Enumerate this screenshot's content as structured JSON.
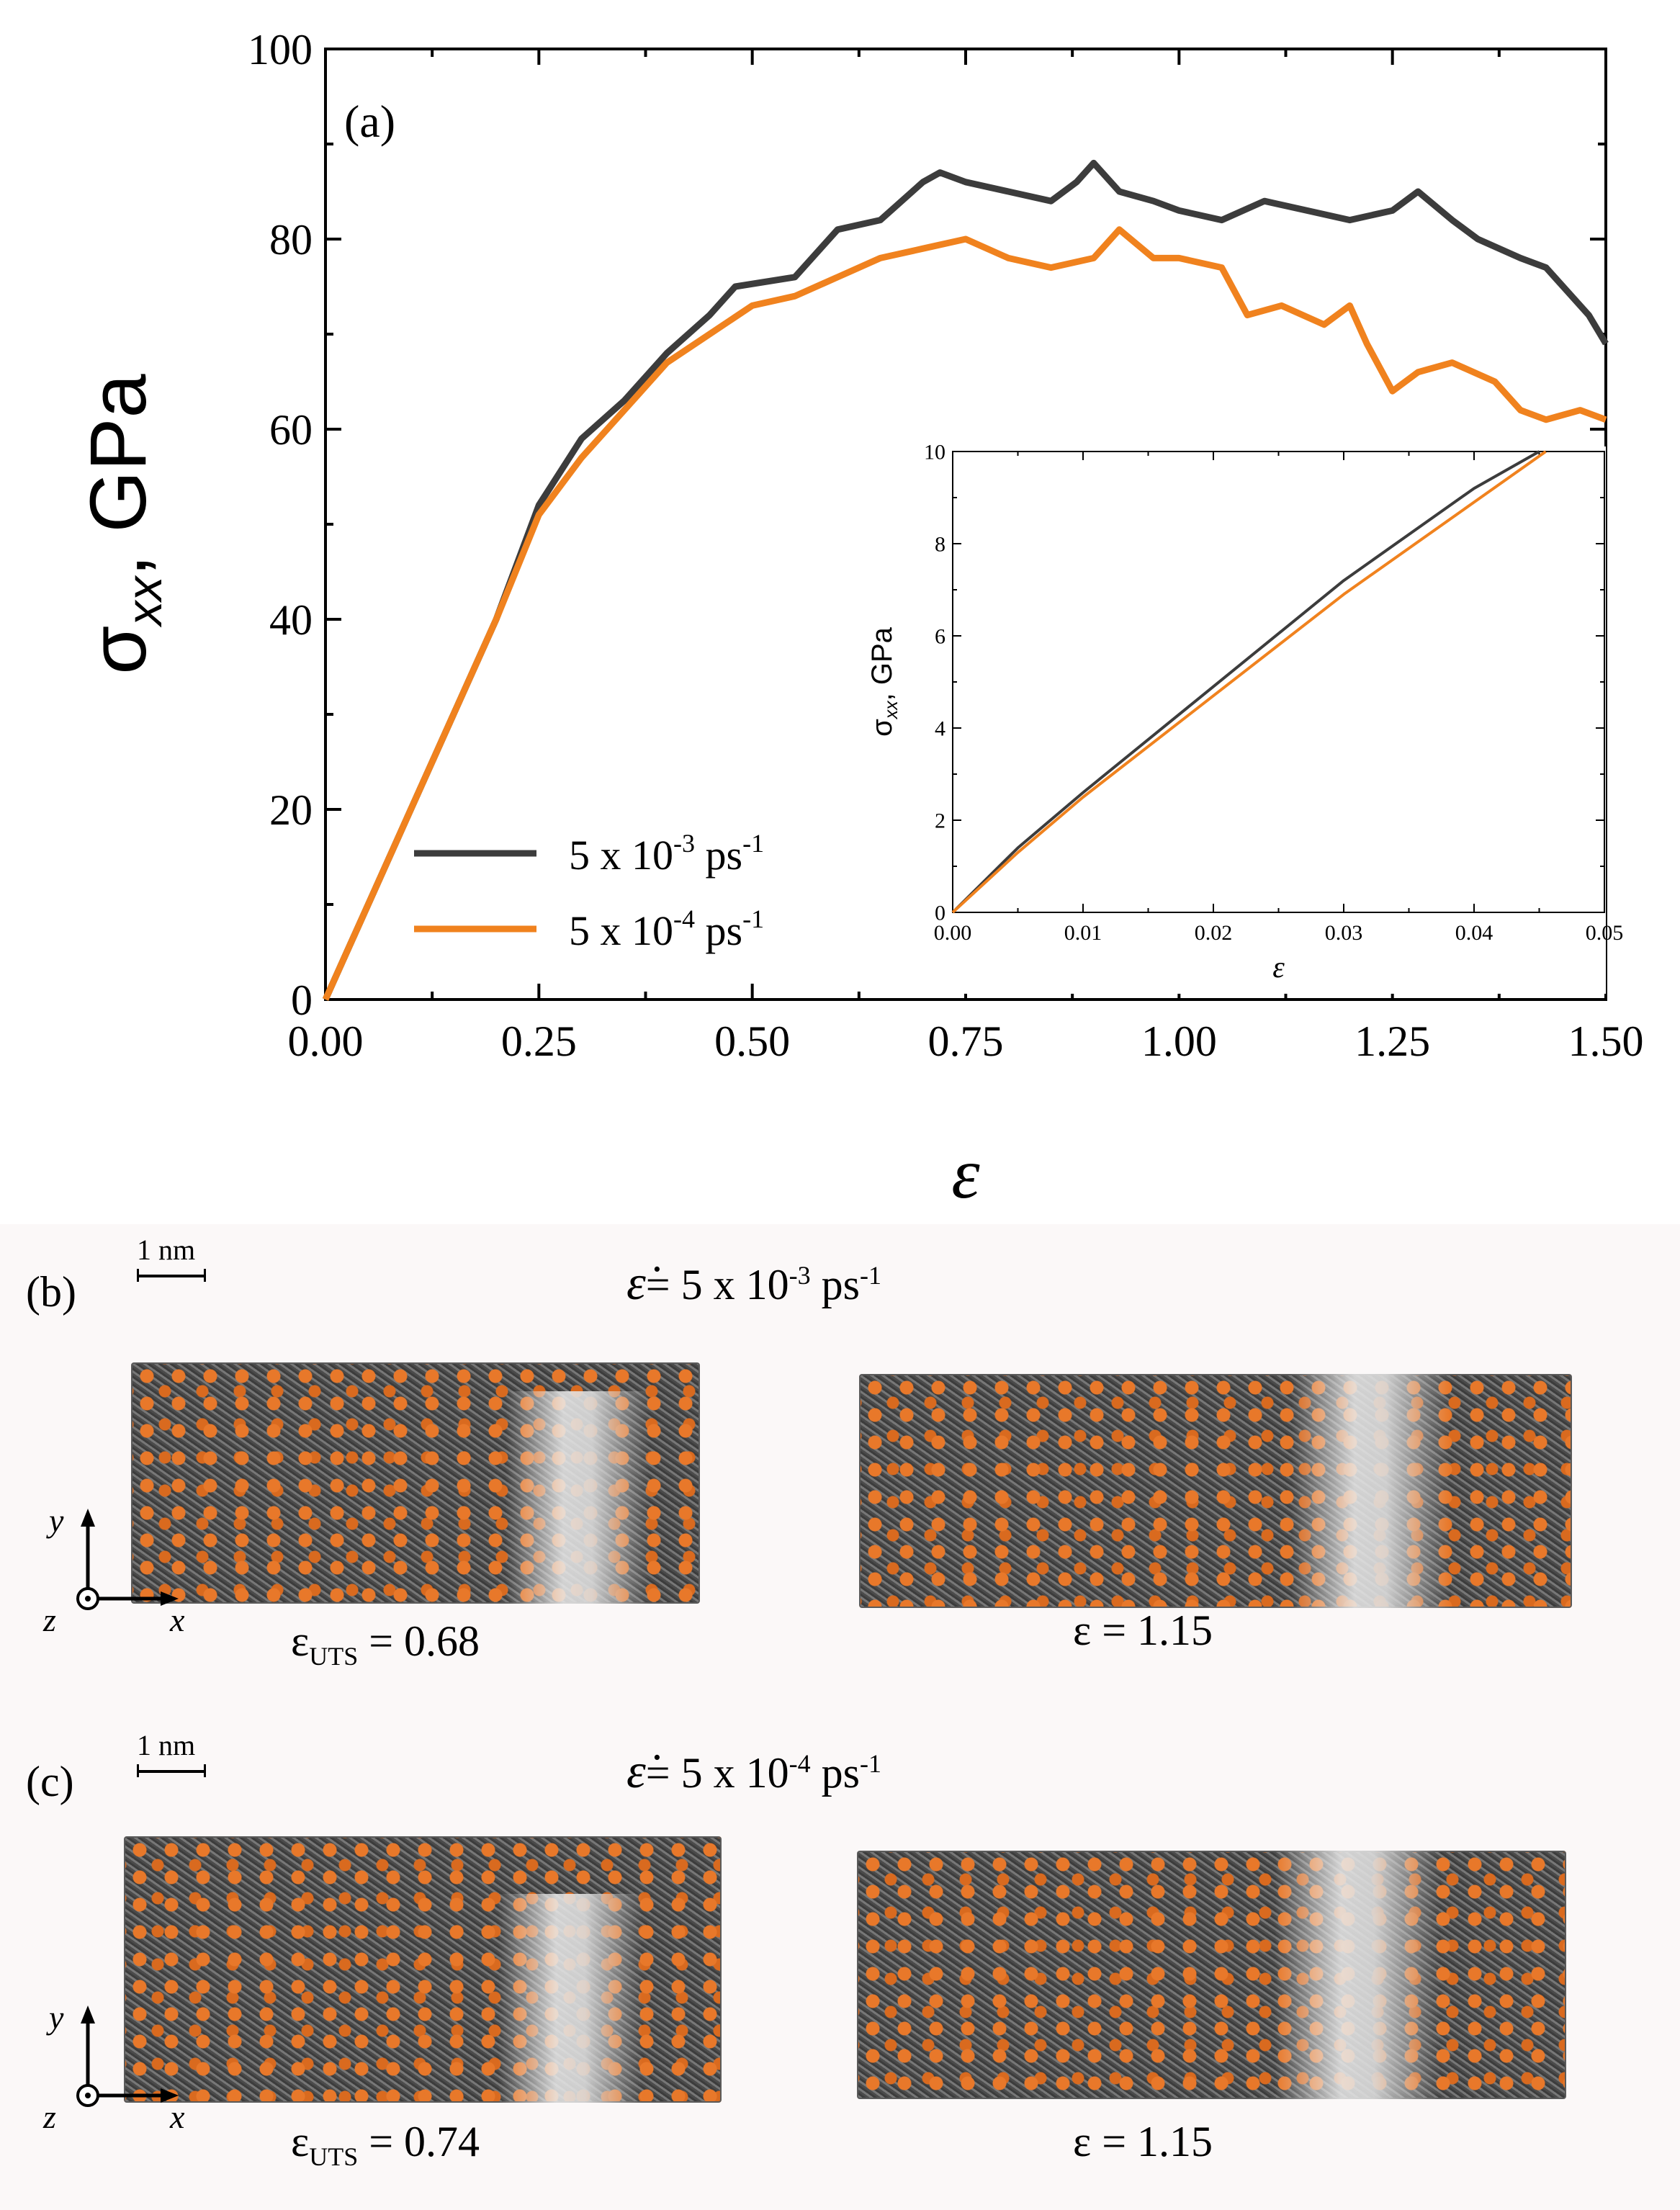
{
  "chart_data": [
    {
      "type": "line",
      "panel": "(a)",
      "xlabel": "ε",
      "ylabel": "σxx, GPa",
      "ylabel_main": "σ",
      "ylabel_sub": "xx",
      "ylabel_rest": ", GPa",
      "xlim": [
        0,
        1.5
      ],
      "ylim": [
        0,
        100
      ],
      "xticks": [
        "0.00",
        "0.25",
        "0.50",
        "0.75",
        "1.00",
        "1.25",
        "1.50"
      ],
      "yticks": [
        "0",
        "20",
        "40",
        "60",
        "80",
        "100"
      ],
      "legend_position": "lower-left",
      "series": [
        {
          "name": "5 x 10-3 ps-1",
          "label_main": "5 x 10",
          "label_exp": "-3",
          "label_unit": " ps",
          "label_uexp": "-1",
          "color": "#3c3c3c",
          "points": [
            [
              0,
              0
            ],
            [
              0.025,
              5
            ],
            [
              0.05,
              10
            ],
            [
              0.1,
              20
            ],
            [
              0.15,
              30
            ],
            [
              0.2,
              40
            ],
            [
              0.25,
              52
            ],
            [
              0.3,
              59
            ],
            [
              0.35,
              63
            ],
            [
              0.4,
              68
            ],
            [
              0.45,
              72
            ],
            [
              0.48,
              75
            ],
            [
              0.55,
              76
            ],
            [
              0.6,
              81
            ],
            [
              0.65,
              82
            ],
            [
              0.7,
              86
            ],
            [
              0.72,
              87
            ],
            [
              0.75,
              86
            ],
            [
              0.8,
              85
            ],
            [
              0.85,
              84
            ],
            [
              0.88,
              86
            ],
            [
              0.9,
              88
            ],
            [
              0.93,
              85
            ],
            [
              0.97,
              84
            ],
            [
              1.0,
              83
            ],
            [
              1.05,
              82
            ],
            [
              1.1,
              84
            ],
            [
              1.15,
              83
            ],
            [
              1.2,
              82
            ],
            [
              1.25,
              83
            ],
            [
              1.28,
              85
            ],
            [
              1.32,
              82
            ],
            [
              1.35,
              80
            ],
            [
              1.4,
              78
            ],
            [
              1.43,
              77
            ],
            [
              1.45,
              75
            ],
            [
              1.48,
              72
            ],
            [
              1.5,
              69
            ]
          ]
        },
        {
          "name": "5 x 10-4 ps-1",
          "label_main": "5 x 10",
          "label_exp": "-4",
          "label_unit": " ps",
          "label_uexp": "-1",
          "color": "#f0821e",
          "points": [
            [
              0,
              0
            ],
            [
              0.025,
              5
            ],
            [
              0.05,
              10
            ],
            [
              0.1,
              20
            ],
            [
              0.15,
              30
            ],
            [
              0.2,
              40
            ],
            [
              0.25,
              51
            ],
            [
              0.3,
              57
            ],
            [
              0.35,
              62
            ],
            [
              0.4,
              67
            ],
            [
              0.45,
              70
            ],
            [
              0.5,
              73
            ],
            [
              0.55,
              74
            ],
            [
              0.6,
              76
            ],
            [
              0.65,
              78
            ],
            [
              0.7,
              79
            ],
            [
              0.75,
              80
            ],
            [
              0.8,
              78
            ],
            [
              0.85,
              77
            ],
            [
              0.9,
              78
            ],
            [
              0.93,
              81
            ],
            [
              0.97,
              78
            ],
            [
              1.0,
              78
            ],
            [
              1.05,
              77
            ],
            [
              1.08,
              72
            ],
            [
              1.12,
              73
            ],
            [
              1.17,
              71
            ],
            [
              1.2,
              73
            ],
            [
              1.22,
              69
            ],
            [
              1.25,
              64
            ],
            [
              1.28,
              66
            ],
            [
              1.32,
              67
            ],
            [
              1.37,
              65
            ],
            [
              1.4,
              62
            ],
            [
              1.43,
              61
            ],
            [
              1.47,
              62
            ],
            [
              1.5,
              61
            ]
          ]
        }
      ]
    },
    {
      "type": "line",
      "panel": "inset",
      "xlabel": "ε",
      "ylabel": "σxx, GPa",
      "ylabel_main": "σ",
      "ylabel_sub": "xx",
      "ylabel_rest": ", GPa",
      "xlim": [
        0,
        0.05
      ],
      "ylim": [
        0,
        10
      ],
      "xticks": [
        "0.00",
        "0.01",
        "0.02",
        "0.03",
        "0.04",
        "0.05"
      ],
      "yticks": [
        "0",
        "2",
        "4",
        "6",
        "8",
        "10"
      ],
      "series": [
        {
          "name": "5 x 10-3 ps-1",
          "color": "#3c3c3c",
          "points": [
            [
              0,
              0
            ],
            [
              0.005,
              1.4
            ],
            [
              0.01,
              2.6
            ],
            [
              0.02,
              4.9
            ],
            [
              0.03,
              7.2
            ],
            [
              0.04,
              9.2
            ],
            [
              0.045,
              10.0
            ]
          ]
        },
        {
          "name": "5 x 10-4 ps-1",
          "color": "#f0821e",
          "points": [
            [
              0,
              0
            ],
            [
              0.005,
              1.3
            ],
            [
              0.01,
              2.5
            ],
            [
              0.02,
              4.7
            ],
            [
              0.03,
              6.9
            ],
            [
              0.04,
              8.9
            ],
            [
              0.0455,
              10.0
            ]
          ]
        }
      ]
    }
  ],
  "panel_b": {
    "label": "(b)",
    "rate_prefix": "= 5 x 10",
    "rate_exp": "-3",
    "rate_unit": " ps",
    "rate_uexp": "-1",
    "scale": "1 nm",
    "axis_y": "y",
    "axis_z": "z",
    "axis_x": "x",
    "left_strain_symbol": "ε",
    "left_strain_sub": "UTS",
    "left_strain_value": " = 0.68",
    "right_strain": "ε = 1.15"
  },
  "panel_c": {
    "label": "(c)",
    "rate_prefix": "= 5 x 10",
    "rate_exp": "-4",
    "rate_unit": " ps",
    "rate_uexp": "-1",
    "scale": "1 nm",
    "axis_y": "y",
    "axis_z": "z",
    "axis_x": "x",
    "left_strain_symbol": "ε",
    "left_strain_sub": "UTS",
    "left_strain_value": " = 0.74",
    "right_strain": "ε = 1.15"
  },
  "rate_symbol": "ε̇"
}
